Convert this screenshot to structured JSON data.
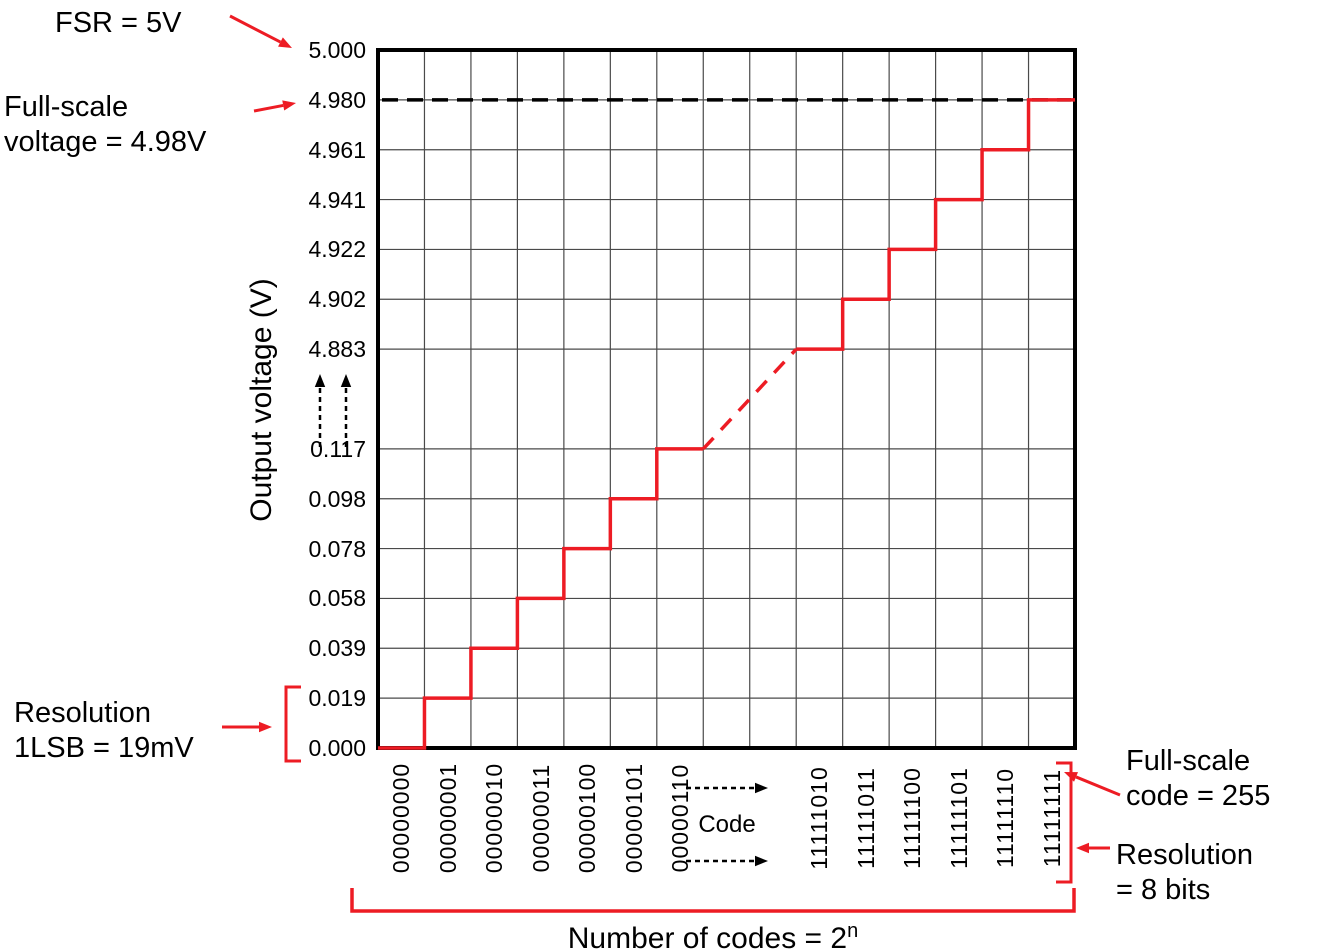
{
  "annotations": {
    "fsr": "FSR = 5V",
    "full_scale_voltage": [
      "Full-scale",
      "voltage = 4.98V"
    ],
    "resolution_lsb": [
      "Resolution",
      "1LSB = 19mV"
    ],
    "full_scale_code": [
      "Full-scale",
      "code = 255"
    ],
    "resolution_bits": [
      "Resolution",
      "= 8 bits"
    ],
    "number_of_codes": {
      "base": "Number of codes = 2",
      "sup": "n"
    },
    "code_gap_label": "Code"
  },
  "axes": {
    "y_label": "Output voltage (V)",
    "y_ticks_lower": [
      "0.000",
      "0.019",
      "0.039",
      "0.058",
      "0.078",
      "0.098",
      "0.117"
    ],
    "y_ticks_upper": [
      "4.883",
      "4.902",
      "4.922",
      "4.941",
      "4.961",
      "4.980",
      "5.000"
    ],
    "x_ticks_lower_codes": [
      "00000000",
      "00000001",
      "00000010",
      "00000011",
      "00000100",
      "00000101",
      "00000110"
    ],
    "x_ticks_upper_codes": [
      "11111010",
      "11111011",
      "11111100",
      "11111101",
      "11111110",
      "11111111"
    ]
  },
  "colors": {
    "trace": "#ed1c24",
    "grid": "#4a4a4a",
    "border": "#000000",
    "text": "#000000"
  },
  "chart_data": {
    "type": "line",
    "subtype": "dac-staircase-transfer-characteristic",
    "xlabel_gap_note": "Code",
    "ylabel": "Output voltage (V)",
    "ylim": [
      0,
      5.0
    ],
    "axis_break": true,
    "grid": true,
    "points": [
      {
        "code": "00000000",
        "voltage": 0.0
      },
      {
        "code": "00000001",
        "voltage": 0.019
      },
      {
        "code": "00000010",
        "voltage": 0.039
      },
      {
        "code": "00000011",
        "voltage": 0.058
      },
      {
        "code": "00000100",
        "voltage": 0.078
      },
      {
        "code": "00000101",
        "voltage": 0.098
      },
      {
        "code": "00000110",
        "voltage": 0.117
      },
      {
        "code": "11111010",
        "voltage": 4.883
      },
      {
        "code": "11111011",
        "voltage": 4.902
      },
      {
        "code": "11111100",
        "voltage": 4.922
      },
      {
        "code": "11111101",
        "voltage": 4.941
      },
      {
        "code": "11111110",
        "voltage": 4.961
      },
      {
        "code": "11111111",
        "voltage": 4.98
      }
    ],
    "full_scale_range_v": 5.0,
    "full_scale_voltage_v": 4.98,
    "resolution_lsb_mv": 19,
    "full_scale_code": 255,
    "resolution_bits": 8
  }
}
